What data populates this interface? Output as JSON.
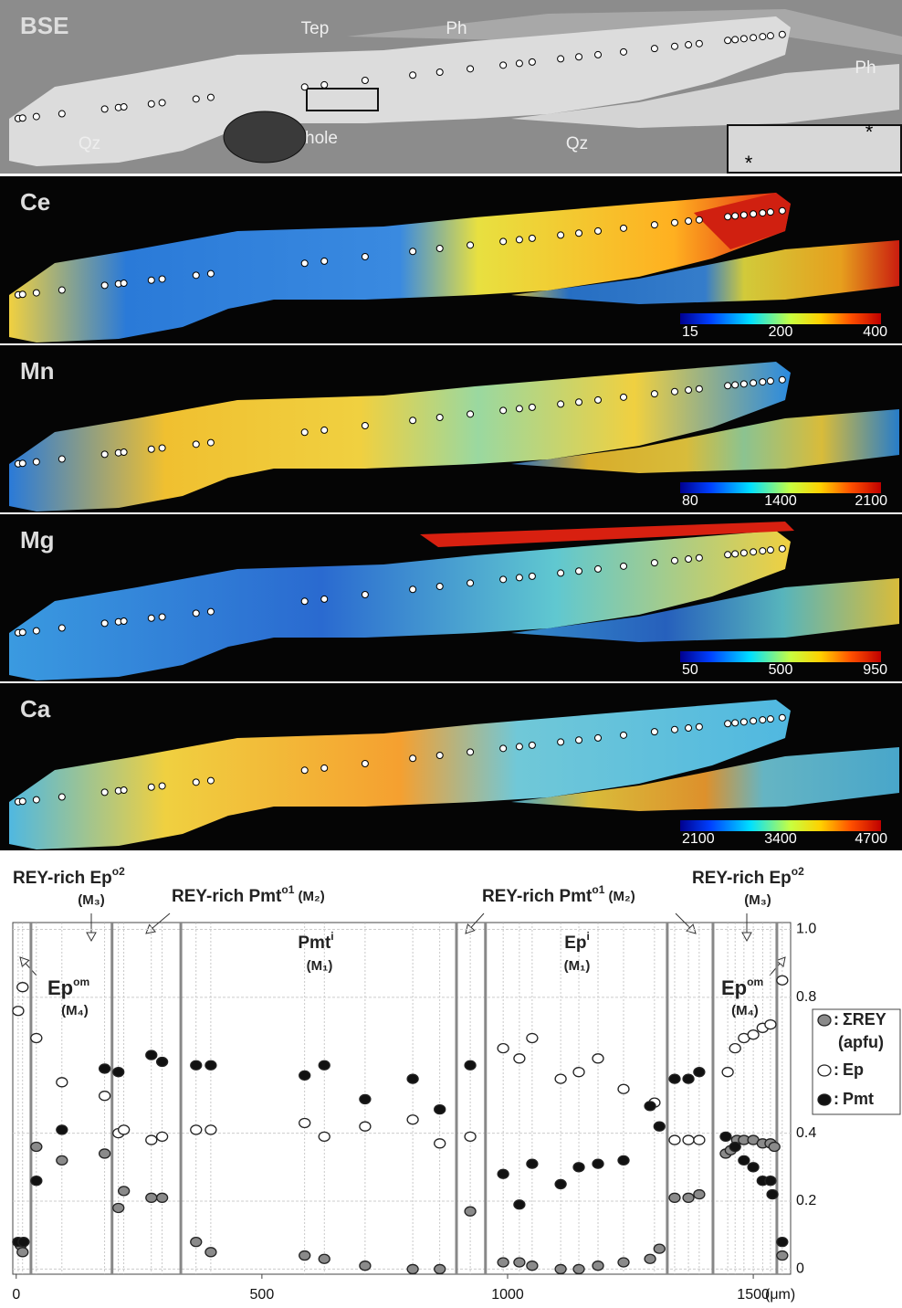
{
  "maps": [
    {
      "label": "BSE",
      "texts": [
        "Tep",
        "Ph",
        "Ph",
        "Qz",
        "Qz",
        "hole",
        "*",
        "*"
      ]
    },
    {
      "label": "Ce",
      "colorbar": [
        15,
        200,
        400
      ]
    },
    {
      "label": "Mn",
      "colorbar": [
        80,
        1400,
        2100
      ]
    },
    {
      "label": "Mg",
      "colorbar": [
        50,
        500,
        950
      ]
    },
    {
      "label": "Ca",
      "colorbar": [
        2100,
        3400,
        4700
      ]
    }
  ],
  "chart_data": {
    "type": "scatter",
    "x_label": "(μm)",
    "xlim": [
      -7,
      1576
    ],
    "xticks": [
      0,
      500,
      1000,
      1500
    ],
    "ylim": [
      -0.015,
      1.02
    ],
    "yticks": [
      0,
      0.2,
      0.4,
      0.8,
      {
        "value": 1,
        "label": "1.0"
      }
    ],
    "grid": true,
    "boundaries": [
      30,
      195,
      335,
      896,
      955,
      1325,
      1418,
      1548
    ],
    "legend_separator": ":",
    "legend_note": "(apfu)",
    "annotations": [
      {
        "text": "REY-rich Ep",
        "sup": "o2"
      },
      {
        "text": "(M₃)"
      },
      {
        "text": "REY-rich Pmt",
        "sup": "o1",
        "after": " (M₂)"
      },
      {
        "text": "Pmt",
        "sup": "i"
      },
      {
        "text": "(M₁)"
      },
      {
        "text": "REY-rich Pmt",
        "sup": "o1",
        "after": " (M₂)"
      },
      {
        "text": "Ep",
        "sup": "i"
      },
      {
        "text": "(M₁)"
      },
      {
        "text": "REY-rich Ep",
        "sup": "o2"
      },
      {
        "text": "(M₃)"
      },
      {
        "text": "Ep",
        "sup": "om"
      },
      {
        "text": "(M₄)"
      },
      {
        "text": "Ep",
        "sup": "om"
      },
      {
        "text": "(M₄)"
      }
    ],
    "series": [
      {
        "name": "ΣREY",
        "color": "#8a8a8a",
        "x": [
          9,
          13,
          41,
          93,
          180,
          208,
          219,
          275,
          297,
          366,
          396,
          587,
          627,
          710,
          807,
          862,
          924,
          991,
          1024,
          1050,
          1108,
          1145,
          1184,
          1236,
          1290,
          1309,
          1340,
          1368,
          1390,
          1444,
          1454,
          1467,
          1481,
          1500,
          1519,
          1535,
          1543,
          1559
        ],
        "values": [
          0.07,
          0.05,
          0.36,
          0.32,
          0.34,
          0.18,
          0.23,
          0.21,
          0.21,
          0.08,
          0.05,
          0.04,
          0.03,
          0.01,
          0,
          0,
          0.17,
          0.02,
          0.02,
          0.01,
          0,
          0,
          0.01,
          0.02,
          0.03,
          0.06,
          0.21,
          0.21,
          0.22,
          0.34,
          0.35,
          0.38,
          0.38,
          0.38,
          0.37,
          0.37,
          0.36,
          0.04
        ]
      },
      {
        "name": "Ep",
        "color": "#ffffff",
        "x": [
          4,
          13,
          41,
          93,
          180,
          208,
          219,
          275,
          297,
          366,
          396,
          587,
          627,
          710,
          807,
          862,
          924,
          991,
          1024,
          1050,
          1108,
          1145,
          1184,
          1236,
          1299,
          1340,
          1368,
          1390,
          1448,
          1463,
          1481,
          1500,
          1519,
          1535,
          1559
        ],
        "values": [
          0.76,
          0.83,
          0.68,
          0.55,
          0.51,
          0.4,
          0.41,
          0.38,
          0.39,
          0.41,
          0.41,
          0.43,
          0.39,
          0.42,
          0.44,
          0.37,
          0.39,
          0.65,
          0.62,
          0.68,
          0.56,
          0.58,
          0.62,
          0.53,
          0.49,
          0.38,
          0.38,
          0.38,
          0.58,
          0.65,
          0.68,
          0.69,
          0.71,
          0.72,
          0.85
        ]
      },
      {
        "name": "Pmt",
        "color": "#111111",
        "x": [
          4,
          15,
          41,
          93,
          180,
          208,
          275,
          297,
          366,
          396,
          587,
          627,
          710,
          807,
          862,
          924,
          991,
          1024,
          1050,
          1108,
          1145,
          1184,
          1236,
          1290,
          1309,
          1340,
          1368,
          1390,
          1444,
          1463,
          1481,
          1500,
          1519,
          1535,
          1539,
          1559
        ],
        "values": [
          0.08,
          0.08,
          0.26,
          0.41,
          0.59,
          0.58,
          0.63,
          0.61,
          0.6,
          0.6,
          0.57,
          0.6,
          0.5,
          0.56,
          0.47,
          0.6,
          0.28,
          0.19,
          0.31,
          0.25,
          0.3,
          0.31,
          0.32,
          0.48,
          0.42,
          0.56,
          0.56,
          0.58,
          0.39,
          0.36,
          0.32,
          0.3,
          0.26,
          0.26,
          0.22,
          0.08
        ]
      }
    ]
  }
}
